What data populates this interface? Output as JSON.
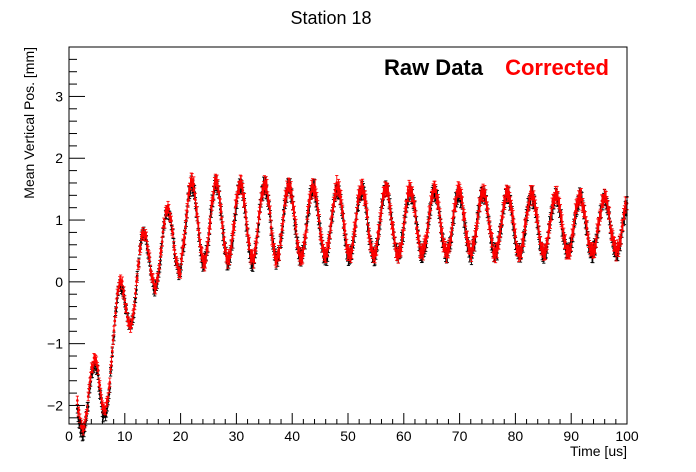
{
  "chart_data": {
    "type": "scatter",
    "title": "Station 18",
    "xlabel": "Time [us]",
    "ylabel": "Mean Vertical Pos. [mm]",
    "xlim": [
      0,
      100
    ],
    "ylim": [
      -2.3,
      3.8
    ],
    "x_ticks": [
      0,
      10,
      20,
      30,
      40,
      50,
      60,
      70,
      80,
      90,
      100
    ],
    "y_ticks": [
      -2,
      -1,
      0,
      1,
      2,
      3
    ],
    "x_tick_labels": [
      "0",
      "10",
      "20",
      "30",
      "40",
      "50",
      "60",
      "70",
      "80",
      "90",
      "100"
    ],
    "y_tick_labels": [
      "−2",
      "−1",
      "0",
      "1",
      "2",
      "3"
    ],
    "grid": false,
    "legend_position": "top-right",
    "error_bars": true,
    "series": [
      {
        "name": "Raw Data",
        "color": "#000000",
        "model": "raw"
      },
      {
        "name": "Corrected",
        "color": "#ff0000",
        "model": "corrected"
      }
    ]
  }
}
